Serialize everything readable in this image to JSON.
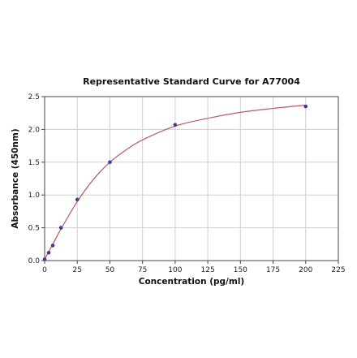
{
  "chart_data": {
    "type": "scatter",
    "title": "Representative Standard Curve for A77004",
    "xlabel": "Concentration (pg/ml)",
    "ylabel": "Absorbance (450nm)",
    "xlim": [
      0,
      225
    ],
    "ylim": [
      0,
      2.5
    ],
    "x_ticks": [
      "0",
      "25",
      "50",
      "75",
      "100",
      "125",
      "150",
      "175",
      "200",
      "225"
    ],
    "y_ticks": [
      "0.0",
      "0.5",
      "1.0",
      "1.5",
      "2.0",
      "2.5"
    ],
    "grid": true,
    "series": [
      {
        "points": [
          {
            "x": 0,
            "y": 0.02
          },
          {
            "x": 3.13,
            "y": 0.12
          },
          {
            "x": 6.25,
            "y": 0.23
          },
          {
            "x": 12.5,
            "y": 0.5
          },
          {
            "x": 25,
            "y": 0.93
          },
          {
            "x": 50,
            "y": 1.5
          },
          {
            "x": 100,
            "y": 2.07
          },
          {
            "x": 200,
            "y": 2.35
          }
        ],
        "color": "#3a3f8f"
      }
    ],
    "fit_curve": {
      "color": "#c0566b",
      "points": [
        {
          "x": 0,
          "y": 0.02
        },
        {
          "x": 6.25,
          "y": 0.25
        },
        {
          "x": 12.5,
          "y": 0.48
        },
        {
          "x": 25,
          "y": 0.9
        },
        {
          "x": 37.5,
          "y": 1.24
        },
        {
          "x": 50,
          "y": 1.5
        },
        {
          "x": 62.5,
          "y": 1.69
        },
        {
          "x": 75,
          "y": 1.84
        },
        {
          "x": 100,
          "y": 2.05
        },
        {
          "x": 125,
          "y": 2.17
        },
        {
          "x": 150,
          "y": 2.26
        },
        {
          "x": 175,
          "y": 2.32
        },
        {
          "x": 200,
          "y": 2.37
        }
      ]
    }
  }
}
